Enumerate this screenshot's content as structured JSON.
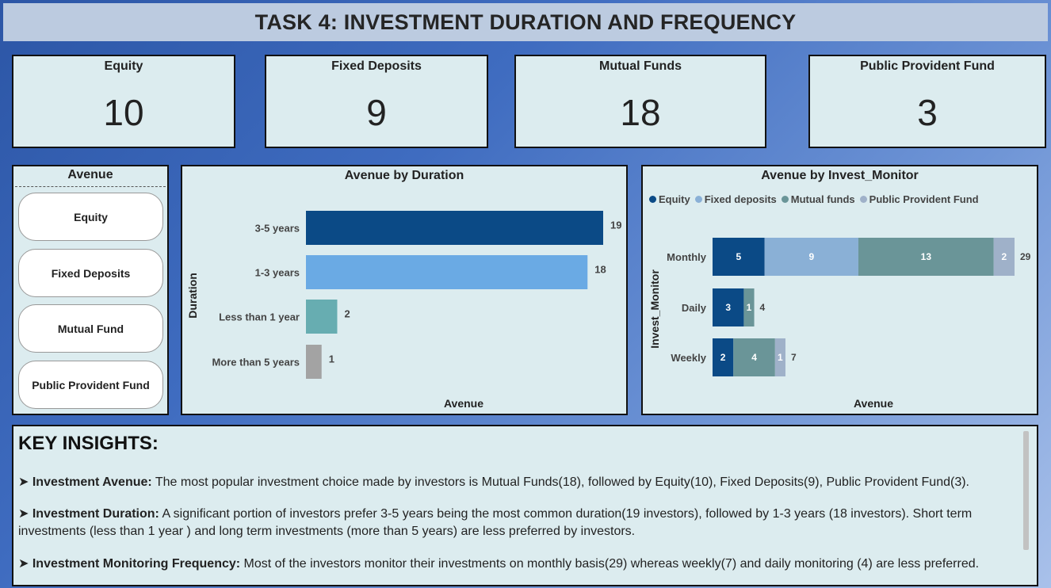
{
  "title": "TASK 4: INVESTMENT DURATION AND FREQUENCY",
  "kpis": [
    {
      "label": "Equity",
      "value": "10"
    },
    {
      "label": "Fixed Deposits",
      "value": "9"
    },
    {
      "label": "Mutual Funds",
      "value": "18"
    },
    {
      "label": "Public Provident Fund",
      "value": "3"
    }
  ],
  "slicer": {
    "title": "Avenue",
    "items": [
      "Equity",
      "Fixed Deposits",
      "Mutual Fund",
      "Public Provident Fund"
    ]
  },
  "colors": {
    "equity": "#0b4a86",
    "fixed_deposits": "#8ab0d6",
    "mutual_funds": "#6a9598",
    "ppf": "#9fb1c9",
    "duration_bars": [
      "#0b4a86",
      "#6aaae4",
      "#67adb1",
      "#a3a3a3"
    ]
  },
  "chart_data": [
    {
      "type": "bar",
      "orientation": "horizontal",
      "title": "Avenue by Duration",
      "xlabel": "Avenue",
      "ylabel": "Duration",
      "categories": [
        "3-5 years",
        "1-3 years",
        "Less than 1 year",
        "More than 5 years"
      ],
      "values": [
        19,
        18,
        2,
        1
      ],
      "xlim": [
        0,
        19
      ]
    },
    {
      "type": "bar",
      "orientation": "horizontal",
      "stacked": true,
      "title": "Avenue by Invest_Monitor",
      "xlabel": "Avenue",
      "ylabel": "Invest_Monitor",
      "legend": "top-left",
      "categories": [
        "Monthly",
        "Daily",
        "Weekly"
      ],
      "series": [
        {
          "name": "Equity",
          "values": [
            5,
            3,
            2
          ]
        },
        {
          "name": "Fixed deposits",
          "values": [
            9,
            0,
            0
          ]
        },
        {
          "name": "Mutual funds",
          "values": [
            13,
            1,
            4
          ]
        },
        {
          "name": "Public Provident Fund",
          "values": [
            2,
            0,
            1
          ]
        }
      ],
      "totals": [
        29,
        4,
        7
      ],
      "xlim": [
        0,
        29
      ]
    }
  ],
  "insights": {
    "title": "KEY INSIGHTS:",
    "items": [
      {
        "bullet": "➤ ",
        "label": "Investment Avenue:",
        "text": " The most popular investment choice made by investors is Mutual Funds(18), followed by Equity(10), Fixed Deposits(9), Public Provident Fund(3)."
      },
      {
        "bullet": "➤ ",
        "label": "Investment Duration:",
        "text": "  A significant portion of investors prefer 3-5 years being the most common duration(19 investors), followed by 1-3 years (18 investors). Short term investments (less than 1 year ) and long term investments (more than 5 years) are less preferred by investors."
      },
      {
        "bullet": "➤ ",
        "label": "Investment Monitoring Frequency:",
        "text": " Most of the investors monitor their investments on monthly basis(29) whereas weekly(7) and daily monitoring (4) are less preferred."
      }
    ]
  }
}
